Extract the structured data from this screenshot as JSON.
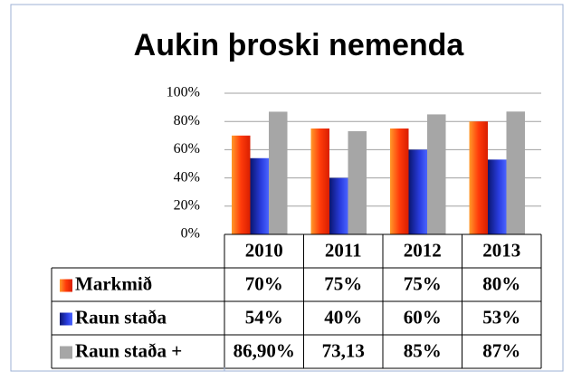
{
  "chart_data": {
    "type": "bar",
    "title": "Aukin þroski nemenda",
    "categories": [
      "2010",
      "2011",
      "2012",
      "2013"
    ],
    "series": [
      {
        "name": "Markmið",
        "color": "#ff3300",
        "values": [
          70,
          75,
          75,
          80
        ],
        "value_labels": [
          "70%",
          "75%",
          "75%",
          "80%"
        ]
      },
      {
        "name": "Raun staða",
        "color": "#1f2fd0",
        "values": [
          54,
          40,
          60,
          53
        ],
        "value_labels": [
          "54%",
          "40%",
          "60%",
          "53%"
        ]
      },
      {
        "name": "Raun staða +",
        "color": "#a6a6a6",
        "values": [
          86.9,
          73.13,
          85,
          87
        ],
        "value_labels": [
          "86,90%",
          "73,13",
          "85%",
          "87%"
        ]
      }
    ],
    "ylim": [
      0,
      100
    ],
    "yticks": [
      {
        "value": 0,
        "label": "0%"
      },
      {
        "value": 20,
        "label": "20%"
      },
      {
        "value": 40,
        "label": "40%"
      },
      {
        "value": 60,
        "label": "60%"
      },
      {
        "value": 80,
        "label": "80%"
      },
      {
        "value": 100,
        "label": "100%"
      }
    ],
    "grid": true
  }
}
